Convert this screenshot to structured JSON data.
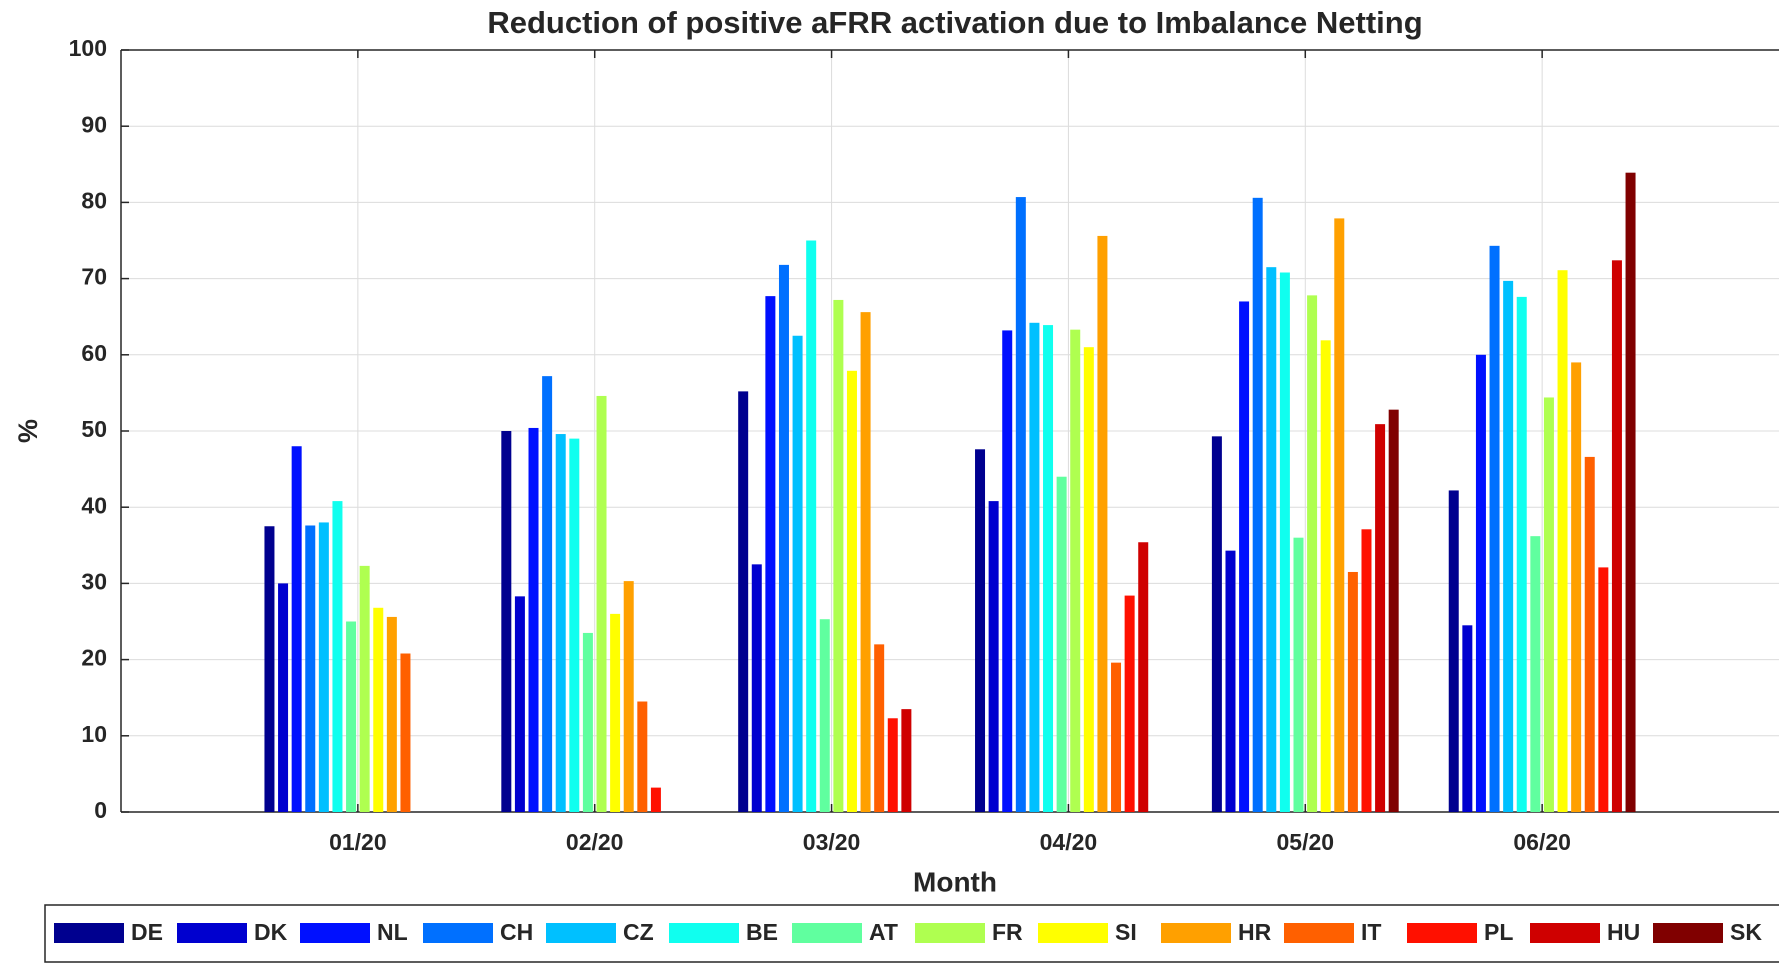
{
  "chart_data": {
    "type": "bar",
    "title": "Reduction of positive aFRR activation due to Imbalance Netting",
    "x_label": "Month",
    "y_label": "%",
    "categories": [
      "01/20",
      "02/20",
      "03/20",
      "04/20",
      "05/20",
      "06/20"
    ],
    "series": [
      {
        "name": "DE",
        "color": "#00008f",
        "values": [
          37.5,
          50,
          55.2,
          47.6,
          49.3,
          42.2
        ]
      },
      {
        "name": "DK",
        "color": "#0000cf",
        "values": [
          30,
          28.3,
          32.5,
          40.8,
          34.3,
          24.5
        ]
      },
      {
        "name": "NL",
        "color": "#0010ff",
        "values": [
          48,
          50.4,
          67.7,
          63.2,
          67,
          60
        ]
      },
      {
        "name": "CH",
        "color": "#0070ff",
        "values": [
          37.6,
          57.2,
          71.8,
          80.7,
          80.6,
          74.3
        ]
      },
      {
        "name": "CZ",
        "color": "#00c0ff",
        "values": [
          38,
          49.6,
          62.5,
          64.2,
          71.5,
          69.7
        ]
      },
      {
        "name": "BE",
        "color": "#10ffef",
        "values": [
          40.8,
          49,
          75,
          63.9,
          70.8,
          67.6
        ]
      },
      {
        "name": "AT",
        "color": "#60ff9f",
        "values": [
          25,
          23.5,
          25.3,
          44,
          36,
          36.2
        ]
      },
      {
        "name": "FR",
        "color": "#afff50",
        "values": [
          32.3,
          54.6,
          67.2,
          63.3,
          67.8,
          54.4
        ]
      },
      {
        "name": "SI",
        "color": "#ffff00",
        "values": [
          26.8,
          26,
          57.9,
          61,
          61.9,
          71.1
        ]
      },
      {
        "name": "HR",
        "color": "#ffa000",
        "values": [
          25.6,
          30.3,
          65.6,
          75.6,
          77.9,
          59
        ]
      },
      {
        "name": "IT",
        "color": "#ff6000",
        "values": [
          20.8,
          14.5,
          22,
          19.6,
          31.5,
          46.6
        ]
      },
      {
        "name": "PL",
        "color": "#ff1000",
        "values": [
          null,
          3.2,
          12.3,
          28.4,
          37.1,
          32.1
        ]
      },
      {
        "name": "HU",
        "color": "#cf0000",
        "values": [
          null,
          null,
          13.5,
          35.4,
          50.9,
          72.4
        ]
      },
      {
        "name": "SK",
        "color": "#800000",
        "values": [
          null,
          null,
          null,
          null,
          52.8,
          83.9
        ]
      }
    ],
    "ylim": [
      0,
      100
    ],
    "yticks": [
      0,
      10,
      20,
      30,
      40,
      50,
      60,
      70,
      80,
      90,
      100
    ],
    "grid": true,
    "legend": "bottom"
  }
}
